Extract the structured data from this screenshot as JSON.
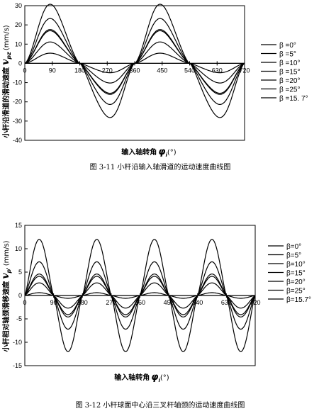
{
  "chart_data": [
    {
      "type": "line",
      "caption": "图 3-11 小杆沿输入轴滑道的运动速度曲线图",
      "xlabel": "输入轴转角",
      "xlabel_symbol": "φ",
      "xlabel_sub": "i",
      "xlabel_unit": "(°)",
      "ylabel": "小杆沿滑道的滑动速度",
      "ylabel_symbol": "v",
      "ylabel_sub": "pz",
      "ylabel_unit": "(mm/s)",
      "xlim": [
        0,
        720
      ],
      "ylim": [
        -40,
        30
      ],
      "xticks": [
        "0",
        "90",
        "180",
        "270",
        "360",
        "450",
        "540",
        "630",
        "720"
      ],
      "yticks": [
        "30",
        "20",
        "10",
        "0",
        "-10",
        "-20",
        "-30",
        "-40"
      ],
      "grid": false,
      "legend_position": "right",
      "series": [
        {
          "name": "β =0°",
          "amplitude": 0
        },
        {
          "name": "β =5°",
          "amplitude": 5
        },
        {
          "name": "β =10°",
          "amplitude": 10.5
        },
        {
          "name": "β =15°",
          "amplitude": 16
        },
        {
          "name": "β =20°",
          "amplitude": 22
        },
        {
          "name": "β =25°",
          "amplitude": 29
        },
        {
          "name": "β =15. 7°",
          "amplitude": 16.6
        }
      ]
    },
    {
      "type": "line",
      "caption": "图 3-12 小杆球面中心沿三叉杆轴颈的运动速度曲线图",
      "xlabel": "输入轴转角",
      "xlabel_symbol": "φ",
      "xlabel_sub": "i",
      "xlabel_unit": "(°)",
      "ylabel": "小杆相对轴颈滑移速度",
      "ylabel_symbol": "v",
      "ylabel_sub": "p'",
      "ylabel_unit": "(mm/s)",
      "xlim": [
        0,
        720
      ],
      "ylim": [
        -15,
        15
      ],
      "xticks": [
        "0",
        "90",
        "180",
        "270",
        "360",
        "450",
        "540",
        "630",
        "720"
      ],
      "yticks": [
        "15",
        "10",
        "5",
        "0",
        "-5",
        "-10",
        "-15"
      ],
      "grid": false,
      "legend_position": "right",
      "series": [
        {
          "name": "β=0°",
          "amplitude": 0
        },
        {
          "name": "β=5°",
          "amplitude": 0.6
        },
        {
          "name": "β=10°",
          "amplitude": 2.7
        },
        {
          "name": "β=15°",
          "amplitude": 4.1
        },
        {
          "name": "β=20°",
          "amplitude": 7.2
        },
        {
          "name": "β=25°",
          "amplitude": 12
        },
        {
          "name": "β=15.7°",
          "amplitude": 4.6
        }
      ]
    }
  ]
}
